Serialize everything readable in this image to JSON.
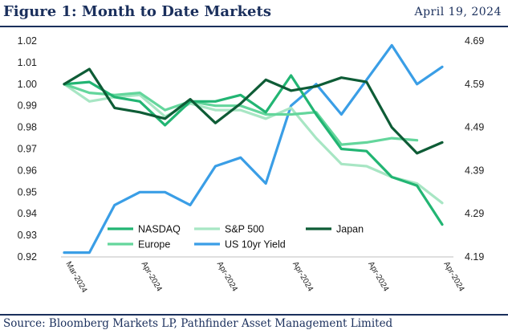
{
  "header": {
    "title": "Figure 1: Month to Date Markets",
    "date": "April 19, 2024"
  },
  "footer": {
    "source": "Source: Bloomberg Markets LP, Pathfinder Asset Management Limited"
  },
  "chart_data": {
    "type": "line",
    "title": "Figure 1: Month to Date Markets",
    "x_tick_labels": [
      "Mar-2024",
      "Apr-2024",
      "Apr-2024",
      "Apr-2024",
      "Apr-2024",
      "Apr-2024"
    ],
    "y_left": {
      "ylim": [
        0.92,
        1.02
      ],
      "ticks": [
        "1.02",
        "1.01",
        "1.00",
        "0.99",
        "0.98",
        "0.97",
        "0.96",
        "0.95",
        "0.94",
        "0.93",
        "0.92"
      ]
    },
    "y_right": {
      "ylim": [
        4.19,
        4.69
      ],
      "ticks": [
        "4.69",
        "4.59",
        "4.49",
        "4.39",
        "4.29",
        "4.19"
      ]
    },
    "series": [
      {
        "name": "NASDAQ",
        "axis": "left",
        "color": "#22b573",
        "values": [
          1.0,
          1.001,
          0.994,
          0.992,
          0.981,
          0.992,
          0.992,
          0.995,
          0.987,
          1.004,
          0.986,
          0.97,
          0.969,
          0.957,
          0.953,
          0.935
        ]
      },
      {
        "name": "S&P 500",
        "axis": "left",
        "color": "#a8e6c4",
        "values": [
          1.0,
          0.992,
          0.994,
          0.995,
          0.985,
          0.991,
          0.988,
          0.988,
          0.984,
          0.989,
          0.975,
          0.963,
          0.962,
          0.957,
          0.954,
          0.945
        ]
      },
      {
        "name": "Japan",
        "axis": "left",
        "color": "#0e5c36",
        "values": [
          1.0,
          1.007,
          0.989,
          0.987,
          0.984,
          0.993,
          0.982,
          0.991,
          1.002,
          0.997,
          0.999,
          1.003,
          1.001,
          0.98,
          0.968,
          0.973
        ]
      },
      {
        "name": "Europe",
        "axis": "left",
        "color": "#64d69c",
        "values": [
          1.0,
          0.996,
          0.995,
          0.996,
          0.988,
          0.992,
          0.99,
          0.99,
          0.986,
          0.986,
          0.987,
          0.972,
          0.973,
          0.975,
          0.974
        ]
      },
      {
        "name": "US 10yr Yield",
        "axis": "right",
        "color": "#3a9ee6",
        "values": [
          4.2,
          4.2,
          4.31,
          4.34,
          4.34,
          4.31,
          4.4,
          4.42,
          4.36,
          4.54,
          4.59,
          4.52,
          4.6,
          4.68,
          4.59,
          4.63
        ]
      }
    ]
  }
}
